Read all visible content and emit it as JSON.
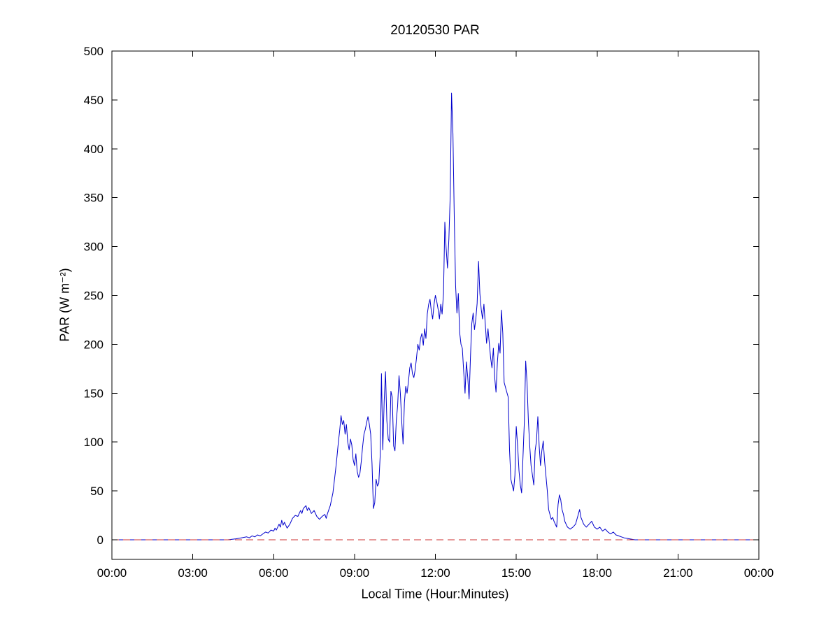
{
  "chart_data": {
    "type": "line",
    "title": "20120530 PAR",
    "xlabel": "Local Time (Hour:Minutes)",
    "ylabel": "PAR (W m⁻²)",
    "xlim": [
      0,
      24
    ],
    "ylim": [
      -20,
      500
    ],
    "xtick_values": [
      0,
      3,
      6,
      9,
      12,
      15,
      18,
      21,
      24
    ],
    "xtick_labels": [
      "00:00",
      "03:00",
      "06:00",
      "09:00",
      "12:00",
      "15:00",
      "18:00",
      "21:00",
      "00:00"
    ],
    "ytick_values": [
      0,
      50,
      100,
      150,
      200,
      250,
      300,
      350,
      400,
      450,
      500
    ],
    "ytick_labels": [
      "0",
      "50",
      "100",
      "150",
      "200",
      "250",
      "300",
      "350",
      "400",
      "450",
      "500"
    ],
    "grid": false,
    "legend": null,
    "colors": {
      "line": "#0000cc",
      "zero_line": "#cc3333",
      "axis": "#000000"
    },
    "series": [
      {
        "id": "par-series-line",
        "name": "PAR",
        "color": "#0000cc",
        "dash": null,
        "points": [
          [
            0,
            0
          ],
          [
            0.5,
            0
          ],
          [
            1,
            0
          ],
          [
            1.5,
            0
          ],
          [
            2,
            0
          ],
          [
            2.5,
            0
          ],
          [
            3,
            0
          ],
          [
            3.5,
            0
          ],
          [
            4,
            0
          ],
          [
            4.3,
            0
          ],
          [
            4.6,
            1
          ],
          [
            4.8,
            2
          ],
          [
            5.0,
            3
          ],
          [
            5.1,
            2
          ],
          [
            5.2,
            4
          ],
          [
            5.3,
            3
          ],
          [
            5.4,
            5
          ],
          [
            5.5,
            4
          ],
          [
            5.6,
            6
          ],
          [
            5.7,
            8
          ],
          [
            5.8,
            7
          ],
          [
            5.9,
            10
          ],
          [
            6.0,
            9
          ],
          [
            6.05,
            12
          ],
          [
            6.1,
            10
          ],
          [
            6.2,
            16
          ],
          [
            6.25,
            13
          ],
          [
            6.3,
            20
          ],
          [
            6.35,
            15
          ],
          [
            6.4,
            18
          ],
          [
            6.5,
            12
          ],
          [
            6.6,
            16
          ],
          [
            6.7,
            22
          ],
          [
            6.8,
            25
          ],
          [
            6.9,
            24
          ],
          [
            7.0,
            30
          ],
          [
            7.05,
            27
          ],
          [
            7.1,
            32
          ],
          [
            7.2,
            35
          ],
          [
            7.25,
            30
          ],
          [
            7.3,
            33
          ],
          [
            7.4,
            27
          ],
          [
            7.5,
            30
          ],
          [
            7.6,
            24
          ],
          [
            7.7,
            21
          ],
          [
            7.8,
            24
          ],
          [
            7.9,
            26
          ],
          [
            7.95,
            22
          ],
          [
            8.0,
            27
          ],
          [
            8.1,
            35
          ],
          [
            8.2,
            48
          ],
          [
            8.3,
            72
          ],
          [
            8.35,
            85
          ],
          [
            8.4,
            100
          ],
          [
            8.45,
            112
          ],
          [
            8.5,
            127
          ],
          [
            8.55,
            118
          ],
          [
            8.6,
            122
          ],
          [
            8.65,
            108
          ],
          [
            8.7,
            118
          ],
          [
            8.75,
            100
          ],
          [
            8.8,
            92
          ],
          [
            8.85,
            103
          ],
          [
            8.9,
            97
          ],
          [
            8.95,
            82
          ],
          [
            9.0,
            76
          ],
          [
            9.05,
            88
          ],
          [
            9.1,
            70
          ],
          [
            9.15,
            64
          ],
          [
            9.2,
            68
          ],
          [
            9.25,
            80
          ],
          [
            9.3,
            95
          ],
          [
            9.35,
            108
          ],
          [
            9.4,
            113
          ],
          [
            9.45,
            120
          ],
          [
            9.5,
            126
          ],
          [
            9.55,
            118
          ],
          [
            9.6,
            108
          ],
          [
            9.65,
            78
          ],
          [
            9.7,
            32
          ],
          [
            9.75,
            38
          ],
          [
            9.8,
            62
          ],
          [
            9.85,
            55
          ],
          [
            9.9,
            58
          ],
          [
            9.95,
            85
          ],
          [
            10.0,
            170
          ],
          [
            10.05,
            92
          ],
          [
            10.1,
            142
          ],
          [
            10.15,
            172
          ],
          [
            10.2,
            122
          ],
          [
            10.25,
            103
          ],
          [
            10.3,
            100
          ],
          [
            10.35,
            152
          ],
          [
            10.4,
            146
          ],
          [
            10.45,
            96
          ],
          [
            10.5,
            91
          ],
          [
            10.55,
            122
          ],
          [
            10.6,
            137
          ],
          [
            10.65,
            168
          ],
          [
            10.7,
            150
          ],
          [
            10.75,
            122
          ],
          [
            10.8,
            98
          ],
          [
            10.85,
            140
          ],
          [
            10.9,
            157
          ],
          [
            10.95,
            150
          ],
          [
            11.0,
            162
          ],
          [
            11.05,
            176
          ],
          [
            11.1,
            181
          ],
          [
            11.15,
            170
          ],
          [
            11.2,
            166
          ],
          [
            11.25,
            174
          ],
          [
            11.3,
            186
          ],
          [
            11.35,
            200
          ],
          [
            11.4,
            194
          ],
          [
            11.45,
            206
          ],
          [
            11.5,
            211
          ],
          [
            11.55,
            199
          ],
          [
            11.6,
            216
          ],
          [
            11.65,
            206
          ],
          [
            11.7,
            231
          ],
          [
            11.75,
            241
          ],
          [
            11.8,
            246
          ],
          [
            11.85,
            234
          ],
          [
            11.9,
            226
          ],
          [
            11.95,
            241
          ],
          [
            12.0,
            250
          ],
          [
            12.05,
            244
          ],
          [
            12.1,
            236
          ],
          [
            12.15,
            226
          ],
          [
            12.2,
            241
          ],
          [
            12.25,
            231
          ],
          [
            12.3,
            252
          ],
          [
            12.35,
            325
          ],
          [
            12.4,
            298
          ],
          [
            12.45,
            278
          ],
          [
            12.5,
            308
          ],
          [
            12.55,
            352
          ],
          [
            12.6,
            457
          ],
          [
            12.65,
            415
          ],
          [
            12.7,
            330
          ],
          [
            12.75,
            260
          ],
          [
            12.8,
            232
          ],
          [
            12.85,
            252
          ],
          [
            12.9,
            212
          ],
          [
            12.95,
            200
          ],
          [
            13.0,
            196
          ],
          [
            13.05,
            172
          ],
          [
            13.1,
            150
          ],
          [
            13.15,
            182
          ],
          [
            13.2,
            166
          ],
          [
            13.25,
            144
          ],
          [
            13.3,
            186
          ],
          [
            13.35,
            221
          ],
          [
            13.4,
            232
          ],
          [
            13.45,
            215
          ],
          [
            13.5,
            226
          ],
          [
            13.55,
            242
          ],
          [
            13.6,
            285
          ],
          [
            13.65,
            252
          ],
          [
            13.7,
            236
          ],
          [
            13.75,
            226
          ],
          [
            13.8,
            241
          ],
          [
            13.85,
            221
          ],
          [
            13.9,
            201
          ],
          [
            13.95,
            216
          ],
          [
            14.0,
            201
          ],
          [
            14.05,
            186
          ],
          [
            14.1,
            176
          ],
          [
            14.15,
            196
          ],
          [
            14.2,
            166
          ],
          [
            14.25,
            151
          ],
          [
            14.3,
            181
          ],
          [
            14.35,
            201
          ],
          [
            14.4,
            191
          ],
          [
            14.45,
            235
          ],
          [
            14.5,
            211
          ],
          [
            14.55,
            161
          ],
          [
            14.6,
            156
          ],
          [
            14.65,
            151
          ],
          [
            14.7,
            146
          ],
          [
            14.75,
            92
          ],
          [
            14.8,
            62
          ],
          [
            14.85,
            56
          ],
          [
            14.9,
            50
          ],
          [
            14.95,
            66
          ],
          [
            15.0,
            116
          ],
          [
            15.05,
            96
          ],
          [
            15.1,
            71
          ],
          [
            15.15,
            56
          ],
          [
            15.2,
            48
          ],
          [
            15.25,
            86
          ],
          [
            15.3,
            121
          ],
          [
            15.35,
            183
          ],
          [
            15.4,
            161
          ],
          [
            15.45,
            121
          ],
          [
            15.5,
            96
          ],
          [
            15.55,
            76
          ],
          [
            15.6,
            66
          ],
          [
            15.65,
            56
          ],
          [
            15.7,
            91
          ],
          [
            15.75,
            101
          ],
          [
            15.8,
            126
          ],
          [
            15.85,
            96
          ],
          [
            15.9,
            76
          ],
          [
            15.95,
            91
          ],
          [
            16.0,
            101
          ],
          [
            16.05,
            81
          ],
          [
            16.1,
            66
          ],
          [
            16.15,
            51
          ],
          [
            16.2,
            31
          ],
          [
            16.25,
            26
          ],
          [
            16.3,
            21
          ],
          [
            16.35,
            23
          ],
          [
            16.4,
            19
          ],
          [
            16.45,
            16
          ],
          [
            16.5,
            13
          ],
          [
            16.55,
            36
          ],
          [
            16.6,
            46
          ],
          [
            16.65,
            41
          ],
          [
            16.7,
            31
          ],
          [
            16.75,
            26
          ],
          [
            16.8,
            19
          ],
          [
            16.85,
            16
          ],
          [
            16.9,
            13
          ],
          [
            17.0,
            11
          ],
          [
            17.1,
            13
          ],
          [
            17.2,
            16
          ],
          [
            17.3,
            26
          ],
          [
            17.35,
            31
          ],
          [
            17.4,
            23
          ],
          [
            17.5,
            16
          ],
          [
            17.6,
            13
          ],
          [
            17.7,
            16
          ],
          [
            17.8,
            19
          ],
          [
            17.9,
            13
          ],
          [
            18.0,
            11
          ],
          [
            18.1,
            13
          ],
          [
            18.2,
            9
          ],
          [
            18.3,
            11
          ],
          [
            18.4,
            8
          ],
          [
            18.5,
            6
          ],
          [
            18.6,
            8
          ],
          [
            18.7,
            5
          ],
          [
            18.8,
            4
          ],
          [
            18.9,
            3
          ],
          [
            19.0,
            2
          ],
          [
            19.2,
            1
          ],
          [
            19.4,
            0
          ],
          [
            20,
            0
          ],
          [
            21,
            0
          ],
          [
            22,
            0
          ],
          [
            23,
            0
          ],
          [
            24,
            0
          ]
        ]
      },
      {
        "id": "zero-reference-line",
        "name": "zero",
        "color": "#cc3333",
        "dash": "10 6",
        "points": [
          [
            0,
            0
          ],
          [
            24,
            0
          ]
        ]
      }
    ]
  }
}
